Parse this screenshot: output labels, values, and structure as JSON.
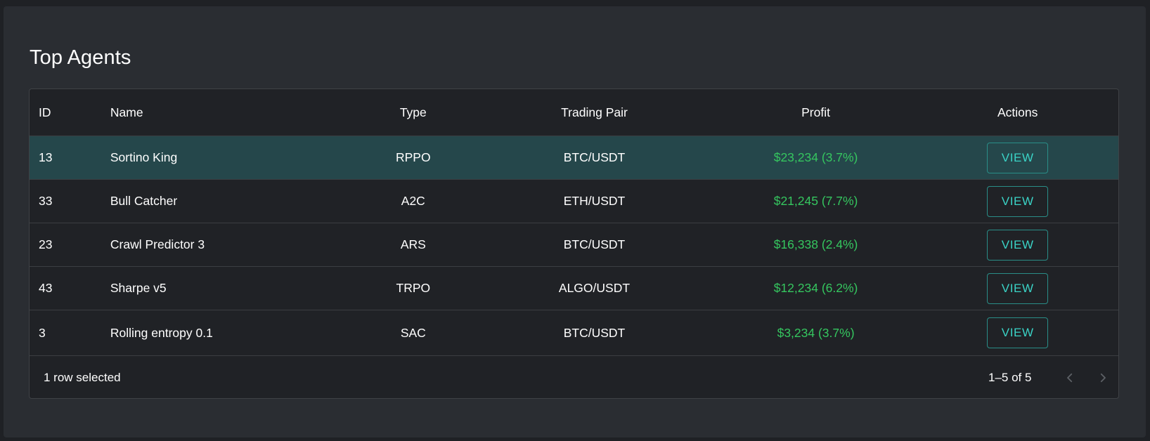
{
  "title": "Top Agents",
  "columns": {
    "id": "ID",
    "name": "Name",
    "type": "Type",
    "pair": "Trading Pair",
    "profit": "Profit",
    "actions": "Actions"
  },
  "rows": [
    {
      "id": "13",
      "name": "Sortino King",
      "type": "RPPO",
      "pair": "BTC/USDT",
      "profit": "$23,234 (3.7%)",
      "action": "VIEW",
      "selected": true
    },
    {
      "id": "33",
      "name": "Bull Catcher",
      "type": "A2C",
      "pair": "ETH/USDT",
      "profit": "$21,245 (7.7%)",
      "action": "VIEW",
      "selected": false
    },
    {
      "id": "23",
      "name": "Crawl Predictor 3",
      "type": "ARS",
      "pair": "BTC/USDT",
      "profit": "$16,338 (2.4%)",
      "action": "VIEW",
      "selected": false
    },
    {
      "id": "43",
      "name": "Sharpe v5",
      "type": "TRPO",
      "pair": "ALGO/USDT",
      "profit": "$12,234 (6.2%)",
      "action": "VIEW",
      "selected": false
    },
    {
      "id": "3",
      "name": "Rolling entropy 0.1",
      "type": "SAC",
      "pair": "BTC/USDT",
      "profit": "$3,234 (3.7%)",
      "action": "VIEW",
      "selected": false
    }
  ],
  "footer": {
    "selected_text": "1 row selected",
    "range_text": "1–5 of 5",
    "prev_icon": "chevron-left-icon",
    "next_icon": "chevron-right-icon"
  },
  "colors": {
    "background": "#1f2125",
    "card": "#2a2d32",
    "grid": "#202226",
    "selected_row": "#25474b",
    "profit": "#35c65f",
    "accent": "#3ad3c6"
  }
}
